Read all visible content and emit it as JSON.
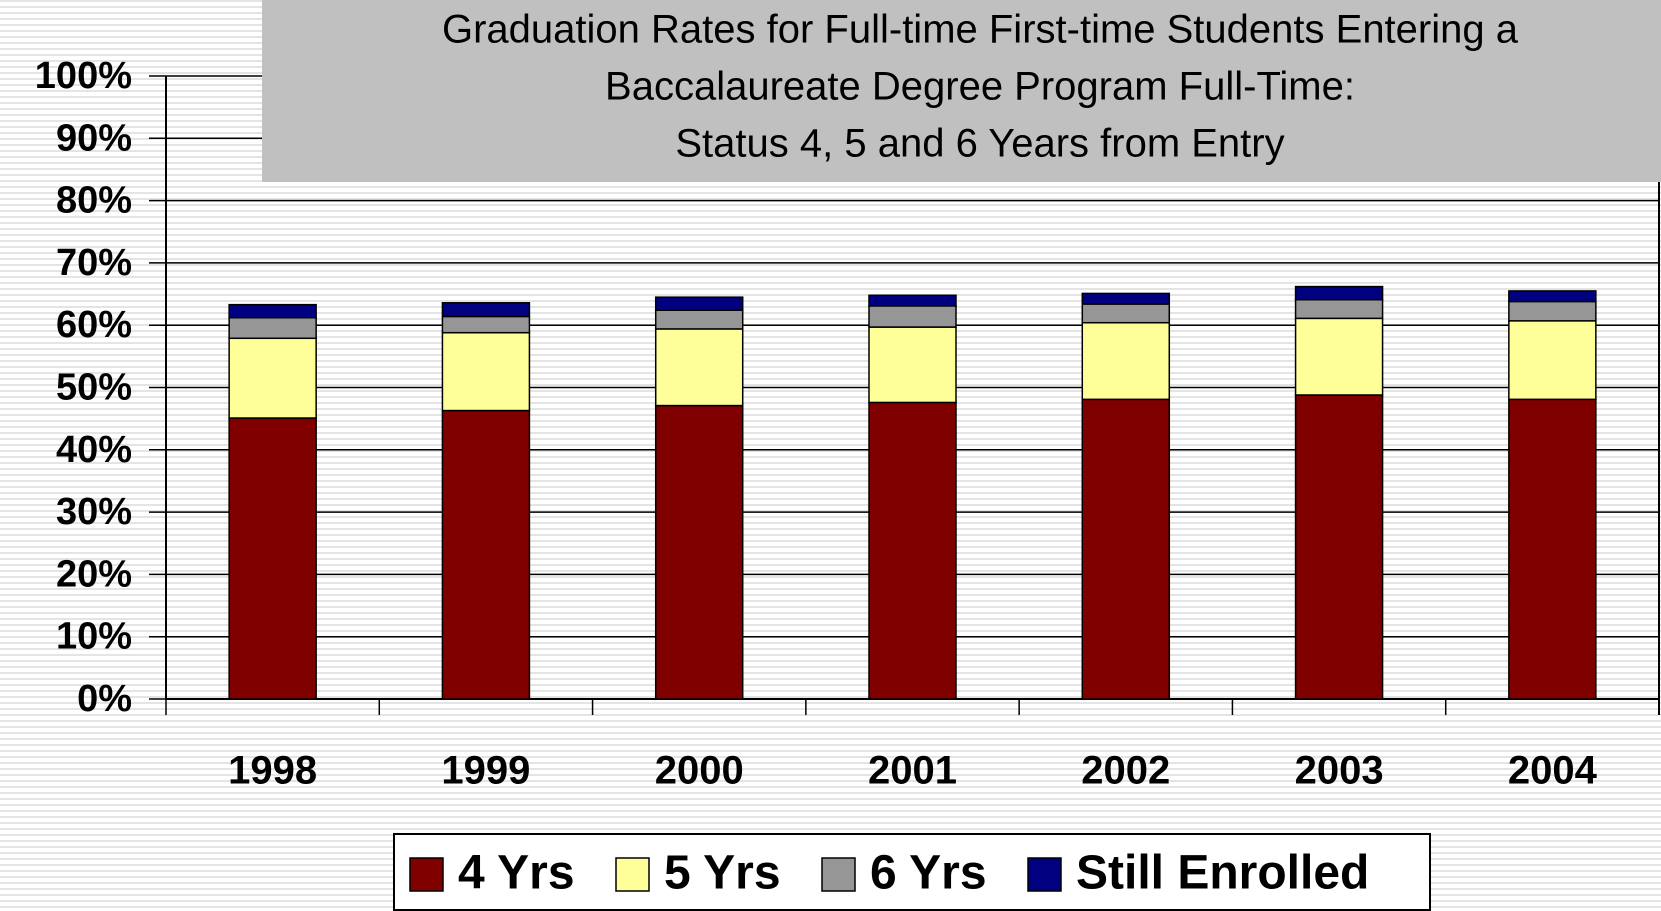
{
  "chart_data": {
    "type": "stacked_bar",
    "title": [
      "Graduation Rates for Full-time First-time Students Entering a",
      "Baccalaureate Degree Program Full-Time:",
      "Status 4, 5 and 6 Years from Entry"
    ],
    "categories": [
      "1998",
      "1999",
      "2000",
      "2001",
      "2002",
      "2003",
      "2004"
    ],
    "series": [
      {
        "name": "4 Yrs",
        "color": "#800000",
        "values": [
          45.1,
          46.3,
          47.1,
          47.6,
          48.1,
          48.8,
          48.1
        ]
      },
      {
        "name": "5 Yrs",
        "color": "#ffff99",
        "values": [
          12.8,
          12.5,
          12.3,
          12.1,
          12.3,
          12.3,
          12.6
        ]
      },
      {
        "name": "6 Yrs",
        "color": "#969696",
        "values": [
          3.3,
          2.6,
          3.0,
          3.4,
          3.0,
          3.0,
          3.1
        ]
      },
      {
        "name": "Still Enrolled",
        "color": "#000080",
        "values": [
          2.1,
          2.2,
          2.1,
          1.7,
          1.7,
          2.1,
          1.7
        ]
      }
    ],
    "ylim": [
      0,
      100
    ],
    "yticks": [
      {
        "value": 0,
        "label": "0%"
      },
      {
        "value": 10,
        "label": "10%"
      },
      {
        "value": 20,
        "label": "20%"
      },
      {
        "value": 30,
        "label": "30%"
      },
      {
        "value": 40,
        "label": "40%"
      },
      {
        "value": 50,
        "label": "50%"
      },
      {
        "value": 60,
        "label": "60%"
      },
      {
        "value": 70,
        "label": "70%"
      },
      {
        "value": 80,
        "label": "80%"
      },
      {
        "value": 90,
        "label": "90%"
      },
      {
        "value": 100,
        "label": "100%"
      }
    ],
    "grid": true,
    "legend": "bottom"
  }
}
